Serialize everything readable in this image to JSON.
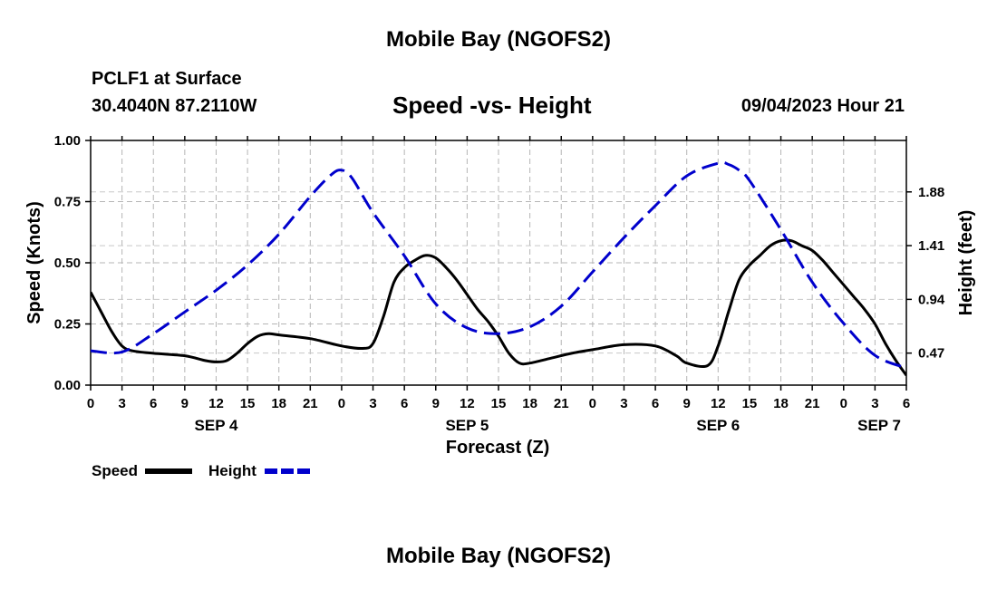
{
  "header": {
    "title": "Mobile Bay (NGOFS2)",
    "station": "PCLF1 at Surface",
    "coords": "30.4040N  87.2110W",
    "subtitle": "Speed -vs- Height",
    "datetime": "09/04/2023 Hour 21",
    "bottom_title": "Mobile Bay (NGOFS2)"
  },
  "chart_data": {
    "type": "line",
    "xlabel": "Forecast (Z)",
    "ylabel": "Speed (Knots)",
    "y2label": "Height (feet)",
    "x_hours_range": [
      0,
      78
    ],
    "ylim": [
      0,
      1.0
    ],
    "y2lim": [
      0.19,
      2.33
    ],
    "x_tick_hours": [
      0,
      3,
      6,
      9,
      12,
      15,
      18,
      21,
      24,
      27,
      30,
      33,
      36,
      39,
      42,
      45,
      48,
      51,
      54,
      57,
      60,
      63,
      66,
      69,
      72,
      75,
      78
    ],
    "x_tick_labels": [
      "0",
      "3",
      "6",
      "9",
      "12",
      "15",
      "18",
      "21",
      "0",
      "3",
      "6",
      "9",
      "12",
      "15",
      "18",
      "21",
      "0",
      "3",
      "6",
      "9",
      "12",
      "15",
      "18",
      "21",
      "0",
      "3",
      "6"
    ],
    "y_ticks": [
      0.0,
      0.25,
      0.5,
      0.75,
      1.0
    ],
    "y_tick_labels": [
      "0.00",
      "0.25",
      "0.50",
      "0.75",
      "1.00"
    ],
    "y2_ticks": [
      0.47,
      0.94,
      1.41,
      1.88
    ],
    "y2_tick_labels": [
      "0.47",
      "0.94",
      "1.41",
      "1.88"
    ],
    "day_labels": [
      {
        "hour": 12,
        "label": "SEP 4"
      },
      {
        "hour": 36,
        "label": "SEP 5"
      },
      {
        "hour": 60,
        "label": "SEP 6"
      },
      {
        "hour": 78,
        "label": "SEP 7"
      }
    ],
    "series": [
      {
        "name": "Speed",
        "axis": "left",
        "color": "#000000",
        "dash": "solid",
        "x": [
          0,
          1,
          2,
          3,
          4,
          6,
          9,
          11,
          12,
          13,
          14,
          15,
          16,
          17,
          18,
          21,
          24,
          26,
          27,
          28,
          29,
          30,
          31,
          32,
          33,
          34,
          35,
          36,
          37,
          38,
          39,
          40,
          41,
          42,
          44,
          46,
          48,
          51,
          54,
          56,
          57,
          59,
          60,
          61,
          62,
          63,
          64,
          65,
          66,
          67,
          68,
          69,
          70,
          71,
          72,
          73,
          74,
          75,
          76,
          77,
          78
        ],
        "values": [
          0.38,
          0.3,
          0.22,
          0.16,
          0.14,
          0.13,
          0.12,
          0.1,
          0.095,
          0.1,
          0.13,
          0.17,
          0.2,
          0.21,
          0.205,
          0.19,
          0.16,
          0.15,
          0.17,
          0.28,
          0.42,
          0.48,
          0.51,
          0.53,
          0.52,
          0.48,
          0.43,
          0.37,
          0.31,
          0.26,
          0.2,
          0.13,
          0.09,
          0.09,
          0.11,
          0.13,
          0.145,
          0.165,
          0.16,
          0.12,
          0.09,
          0.08,
          0.16,
          0.3,
          0.43,
          0.49,
          0.53,
          0.57,
          0.59,
          0.59,
          0.57,
          0.55,
          0.51,
          0.46,
          0.41,
          0.36,
          0.31,
          0.25,
          0.17,
          0.1,
          0.04
        ]
      },
      {
        "name": "Height",
        "axis": "right",
        "color": "#0000cc",
        "dash": "dashed",
        "x": [
          0,
          3,
          6,
          9,
          12,
          15,
          18,
          21,
          23,
          24,
          25,
          27,
          30,
          33,
          36,
          39,
          42,
          45,
          48,
          51,
          54,
          57,
          60,
          61,
          62,
          63,
          66,
          69,
          72,
          75,
          78
        ],
        "values": [
          0.49,
          0.48,
          0.64,
          0.83,
          1.02,
          1.24,
          1.51,
          1.84,
          2.03,
          2.07,
          2.0,
          1.7,
          1.32,
          0.9,
          0.69,
          0.64,
          0.7,
          0.88,
          1.18,
          1.48,
          1.76,
          2.02,
          2.13,
          2.12,
          2.07,
          1.98,
          1.55,
          1.09,
          0.73,
          0.45,
          0.34
        ]
      }
    ],
    "legend": [
      {
        "label": "Speed",
        "color": "#000000",
        "dash": "solid"
      },
      {
        "label": "Height",
        "color": "#0000cc",
        "dash": "dashed"
      }
    ],
    "legend_position": "bottom-left",
    "grid": true
  }
}
